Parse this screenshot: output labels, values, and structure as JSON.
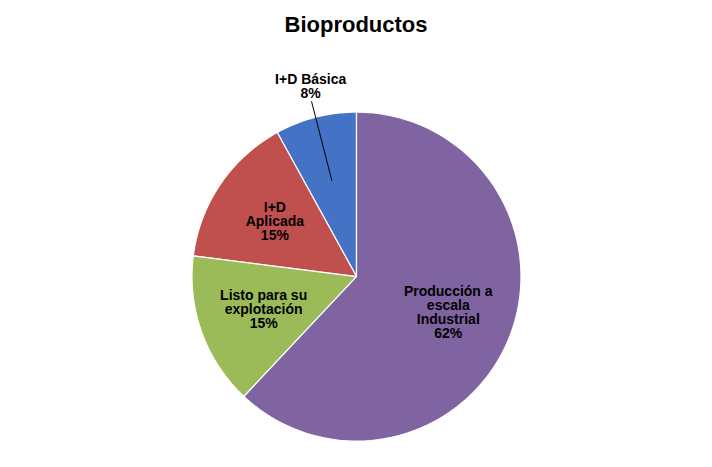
{
  "chart_data": {
    "type": "pie",
    "title": "Bioproductos",
    "categories": [
      "I+D Básica",
      "I+D\nAplicada",
      "Listo para su\nexplotación",
      "Producción a\nescala\nIndustrial"
    ],
    "values": [
      8,
      15,
      15,
      62
    ],
    "value_labels": [
      "8%",
      "15%",
      "15%",
      "62%"
    ],
    "colors": [
      "#4472C4",
      "#C0504D",
      "#9BBB59",
      "#8064A2"
    ],
    "data_labels": true
  }
}
